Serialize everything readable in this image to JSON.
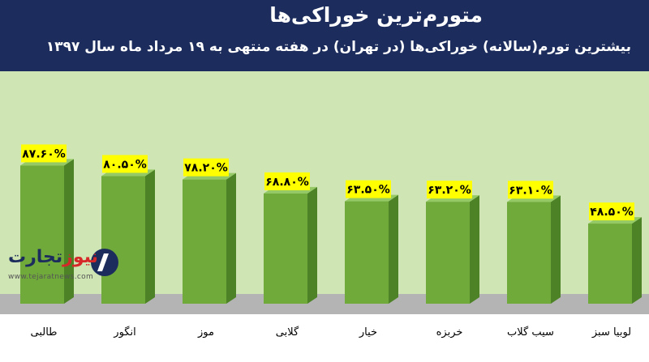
{
  "header": {
    "title": "متورم‌ترین خوراکی‌ها",
    "subtitle": "بیشترین تورم(سالانه) خوراکی‌ها (در تهران) در هفته منتهی به ۱۹ مرداد ماه سال ۱۳۹۷"
  },
  "logo": {
    "name_part1": "تجارت",
    "name_part2": "نیوز",
    "url": "www.tejaratnews.com"
  },
  "colors": {
    "header_bg": "#1c2c5c",
    "plot_bg": "#cfe5b4",
    "floor": "#b4b4b4",
    "bar_front": "#6faa3a",
    "bar_side": "#4d8326",
    "bar_top": "#95c965",
    "label_bg": "#ffff00"
  },
  "chart_data": {
    "type": "bar",
    "categories": [
      "طالبی",
      "انگور",
      "موز",
      "گلابی",
      "خیار",
      "خربزه",
      "سیب گلاب",
      "لوبیا سبز"
    ],
    "values": [
      87.6,
      80.5,
      78.2,
      68.8,
      63.5,
      63.2,
      63.1,
      48.5
    ],
    "data_labels": [
      "۸۷.۶۰%",
      "۸۰.۵۰%",
      "۷۸.۲۰%",
      "۶۸.۸۰%",
      "۶۳.۵۰%",
      "۶۳.۲۰%",
      "۶۳.۱۰%",
      "۴۸.۵۰%"
    ],
    "unit": "%",
    "ylim": [
      0,
      150
    ],
    "grid": false,
    "legend": "none"
  }
}
